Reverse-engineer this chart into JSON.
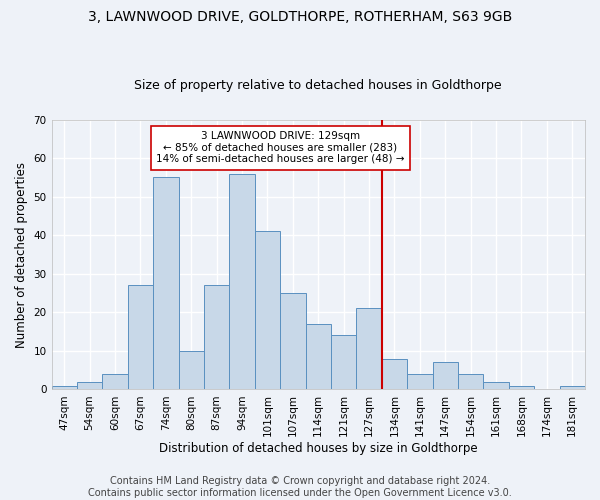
{
  "title": "3, LAWNWOOD DRIVE, GOLDTHORPE, ROTHERHAM, S63 9GB",
  "subtitle": "Size of property relative to detached houses in Goldthorpe",
  "xlabel": "Distribution of detached houses by size in Goldthorpe",
  "ylabel": "Number of detached properties",
  "bar_labels": [
    "47sqm",
    "54sqm",
    "60sqm",
    "67sqm",
    "74sqm",
    "80sqm",
    "87sqm",
    "94sqm",
    "101sqm",
    "107sqm",
    "114sqm",
    "121sqm",
    "127sqm",
    "134sqm",
    "141sqm",
    "147sqm",
    "154sqm",
    "161sqm",
    "168sqm",
    "174sqm",
    "181sqm"
  ],
  "bar_values": [
    1,
    2,
    4,
    27,
    55,
    10,
    27,
    56,
    41,
    25,
    17,
    14,
    21,
    8,
    4,
    7,
    4,
    2,
    1,
    0,
    1
  ],
  "bar_color": "#c8d8e8",
  "bar_edge_color": "#5a90c0",
  "background_color": "#eef2f8",
  "grid_color": "#ffffff",
  "vline_color": "#cc0000",
  "annotation_title": "3 LAWNWOOD DRIVE: 129sqm",
  "annotation_line1": "← 85% of detached houses are smaller (283)",
  "annotation_line2": "14% of semi-detached houses are larger (48) →",
  "annotation_box_color": "#ffffff",
  "annotation_box_edge": "#cc0000",
  "ylim": [
    0,
    70
  ],
  "yticks": [
    0,
    10,
    20,
    30,
    40,
    50,
    60,
    70
  ],
  "footer_line1": "Contains HM Land Registry data © Crown copyright and database right 2024.",
  "footer_line2": "Contains public sector information licensed under the Open Government Licence v3.0.",
  "title_fontsize": 10,
  "subtitle_fontsize": 9,
  "xlabel_fontsize": 8.5,
  "ylabel_fontsize": 8.5,
  "tick_fontsize": 7.5,
  "footer_fontsize": 7,
  "ann_fontsize": 7.5
}
